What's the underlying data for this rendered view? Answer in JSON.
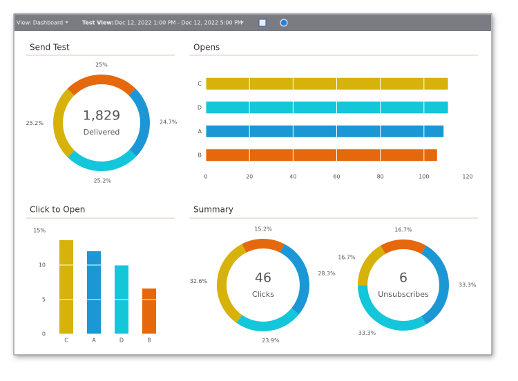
{
  "toolbar": {
    "view": "View: Dashboard",
    "test_view_label": "Test View:",
    "test_view_range": "Dec 12, 2022 1:00 PM - Dec 12, 2022 5:00 PM"
  },
  "summary": {
    "title": "Summary"
  },
  "chart_data": [
    {
      "type": "donut",
      "title": "Send Test",
      "center_text": "1,829",
      "center_caption": "Delivered",
      "values": [
        25,
        24.7,
        25.2,
        25.2
      ],
      "value_labels": [
        "25%",
        "24.7%",
        "25.2%",
        "25.2%"
      ],
      "colors": [
        "#e5680c",
        "#1b97d5",
        "#13c6d9",
        "#d6b20a"
      ]
    },
    {
      "type": "hbar",
      "title": "Opens",
      "categories": [
        "C",
        "D",
        "A",
        "B"
      ],
      "values": [
        111,
        111,
        109,
        106
      ],
      "colors": [
        "#d6b20a",
        "#13c6d9",
        "#1b97d5",
        "#e5680c"
      ],
      "xlim": [
        0,
        120
      ],
      "xticks": [
        0,
        20,
        40,
        60,
        80,
        100,
        120
      ],
      "grid": true
    },
    {
      "type": "bar",
      "title": "Click to Open",
      "categories": [
        "C",
        "A",
        "D",
        "B"
      ],
      "values": [
        13.6,
        12,
        10,
        6.6
      ],
      "colors": [
        "#d6b20a",
        "#1b97d5",
        "#13c6d9",
        "#e5680c"
      ],
      "ylim": [
        0,
        15
      ],
      "yticks": [
        0,
        5,
        10,
        {
          "value": 15,
          "label": "15%"
        }
      ],
      "grid": true
    },
    {
      "type": "donut",
      "center_text": "46",
      "center_caption": "Clicks",
      "values": [
        15.2,
        28.3,
        23.9,
        32.6
      ],
      "value_labels": [
        "15.2%",
        "28.3%",
        "23.9%",
        "32.6%"
      ],
      "colors": [
        "#e5680c",
        "#1b97d5",
        "#13c6d9",
        "#d6b20a"
      ]
    },
    {
      "type": "donut",
      "center_text": "6",
      "center_caption": "Unsubscribes",
      "values": [
        16.7,
        33.3,
        33.3,
        16.7
      ],
      "value_labels": [
        "16.7%",
        "33.3%",
        "33.3%",
        "16.7%"
      ],
      "colors": [
        "#e5680c",
        "#1b97d5",
        "#13c6d9",
        "#d6b20a"
      ]
    }
  ]
}
